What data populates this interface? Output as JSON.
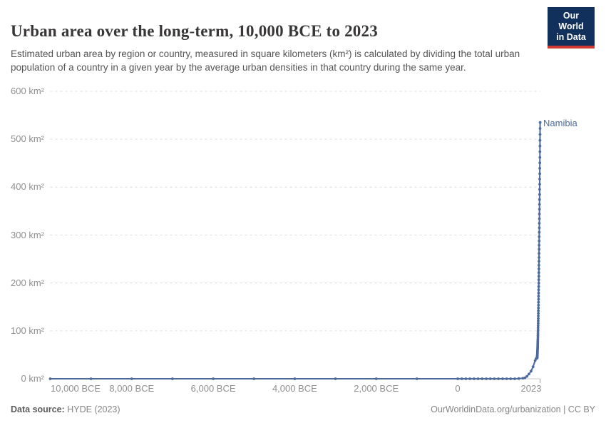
{
  "header": {
    "title": "Urban area over the long-term, 10,000 BCE to 2023",
    "subtitle": "Estimated urban area by region or country, measured in square kilometers (km²) is calculated by dividing the total urban population of a country in a given year by the average urban densities in that country during the same year.",
    "logo": {
      "line1": "Our World",
      "line2": "in Data"
    }
  },
  "footer": {
    "source_label": "Data source:",
    "source_value": " HYDE (2023)",
    "credit": "OurWorldinData.org/urbanization | CC BY"
  },
  "chart_data": {
    "type": "line",
    "title": "Urban area over the long-term, 10,000 BCE to 2023",
    "entity": "Namibia",
    "unit": "km²",
    "legend_position": "end-of-line label",
    "x_axis": {
      "range": [
        -10000,
        2023
      ],
      "ticks": [
        {
          "label": "10,000 BCE",
          "year": -10000
        },
        {
          "label": "8,000 BCE",
          "year": -8000
        },
        {
          "label": "6,000 BCE",
          "year": -6000
        },
        {
          "label": "4,000 BCE",
          "year": -4000
        },
        {
          "label": "2,000 BCE",
          "year": -2000
        },
        {
          "label": "0",
          "year": 0
        },
        {
          "label": "2023",
          "year": 2023
        }
      ]
    },
    "y_axis": {
      "range": [
        0,
        600
      ],
      "grid": true,
      "ticks": [
        {
          "label": "600 km²",
          "value": 600
        },
        {
          "label": "500 km²",
          "value": 500
        },
        {
          "label": "400 km²",
          "value": 400
        },
        {
          "label": "300 km²",
          "value": 300
        },
        {
          "label": "200 km²",
          "value": 200
        },
        {
          "label": "100 km²",
          "value": 100
        },
        {
          "label": "0 km²",
          "value": 0
        }
      ]
    },
    "series": [
      {
        "name": "Namibia",
        "color": "#4C6A9C",
        "points": [
          [
            -10000,
            0
          ],
          [
            -9000,
            0
          ],
          [
            -8000,
            0
          ],
          [
            -7000,
            0
          ],
          [
            -6000,
            0
          ],
          [
            -5000,
            0
          ],
          [
            -4000,
            0
          ],
          [
            -3000,
            0
          ],
          [
            -2000,
            0
          ],
          [
            -1000,
            0
          ],
          [
            0,
            0
          ],
          [
            100,
            0
          ],
          [
            200,
            0
          ],
          [
            300,
            0
          ],
          [
            400,
            0
          ],
          [
            500,
            0
          ],
          [
            600,
            0
          ],
          [
            700,
            0
          ],
          [
            800,
            0
          ],
          [
            900,
            0
          ],
          [
            1000,
            0
          ],
          [
            1100,
            0
          ],
          [
            1200,
            0
          ],
          [
            1300,
            0
          ],
          [
            1400,
            0
          ],
          [
            1500,
            0.5
          ],
          [
            1600,
            1
          ],
          [
            1650,
            2
          ],
          [
            1700,
            5
          ],
          [
            1750,
            10
          ],
          [
            1800,
            16
          ],
          [
            1850,
            25
          ],
          [
            1900,
            38
          ],
          [
            1925,
            42
          ],
          [
            1935,
            43
          ],
          [
            1945,
            43
          ],
          [
            1946,
            43.1
          ],
          [
            1947,
            43.3
          ],
          [
            1948,
            43.7
          ],
          [
            1949,
            44.3
          ],
          [
            1950,
            45
          ],
          [
            1951,
            45.9
          ],
          [
            1952,
            47
          ],
          [
            1953,
            48.2
          ],
          [
            1954,
            49.5
          ],
          [
            1955,
            51.1
          ],
          [
            1956,
            52.8
          ],
          [
            1957,
            54.6
          ],
          [
            1958,
            56.7
          ],
          [
            1959,
            58.8
          ],
          [
            1960,
            61.2
          ],
          [
            1961,
            63.7
          ],
          [
            1962,
            66.4
          ],
          [
            1963,
            69.2
          ],
          [
            1964,
            72.2
          ],
          [
            1965,
            75.3
          ],
          [
            1966,
            78.7
          ],
          [
            1967,
            82.1
          ],
          [
            1968,
            85.8
          ],
          [
            1969,
            89.6
          ],
          [
            1970,
            93.5
          ],
          [
            1971,
            97.7
          ],
          [
            1972,
            101.9
          ],
          [
            1973,
            106.4
          ],
          [
            1974,
            111
          ],
          [
            1975,
            115.8
          ],
          [
            1976,
            120.7
          ],
          [
            1977,
            125.8
          ],
          [
            1978,
            131.1
          ],
          [
            1979,
            136.5
          ],
          [
            1980,
            142.1
          ],
          [
            1981,
            147.8
          ],
          [
            1982,
            153.7
          ],
          [
            1983,
            159.8
          ],
          [
            1984,
            166
          ],
          [
            1985,
            172.4
          ],
          [
            1986,
            178.9
          ],
          [
            1987,
            185.6
          ],
          [
            1988,
            192.5
          ],
          [
            1989,
            199.6
          ],
          [
            1990,
            206.8
          ],
          [
            1991,
            214.1
          ],
          [
            1992,
            221.6
          ],
          [
            1993,
            229.3
          ],
          [
            1994,
            237.2
          ],
          [
            1995,
            245.2
          ],
          [
            1996,
            253.3
          ],
          [
            1997,
            261.7
          ],
          [
            1998,
            270.2
          ],
          [
            1999,
            278.8
          ],
          [
            2000,
            287.6
          ],
          [
            2001,
            296.6
          ],
          [
            2002,
            305.7
          ],
          [
            2003,
            315
          ],
          [
            2004,
            324.5
          ],
          [
            2005,
            334.1
          ],
          [
            2006,
            343.9
          ],
          [
            2007,
            353.9
          ],
          [
            2008,
            364
          ],
          [
            2009,
            374.2
          ],
          [
            2010,
            384.7
          ],
          [
            2011,
            395.3
          ],
          [
            2012,
            406
          ],
          [
            2013,
            416.9
          ],
          [
            2014,
            428
          ],
          [
            2015,
            439.3
          ],
          [
            2016,
            450.7
          ],
          [
            2017,
            462.2
          ],
          [
            2018,
            474
          ],
          [
            2019,
            485.8
          ],
          [
            2020,
            497.9
          ],
          [
            2021,
            510.1
          ],
          [
            2022,
            522.5
          ],
          [
            2023,
            535
          ]
        ]
      }
    ],
    "colors": {
      "line": "#4C6A9C",
      "grid": "#dcdcdc",
      "axis": "#c8c8c8",
      "tick_text": "#8f8f8f"
    }
  }
}
